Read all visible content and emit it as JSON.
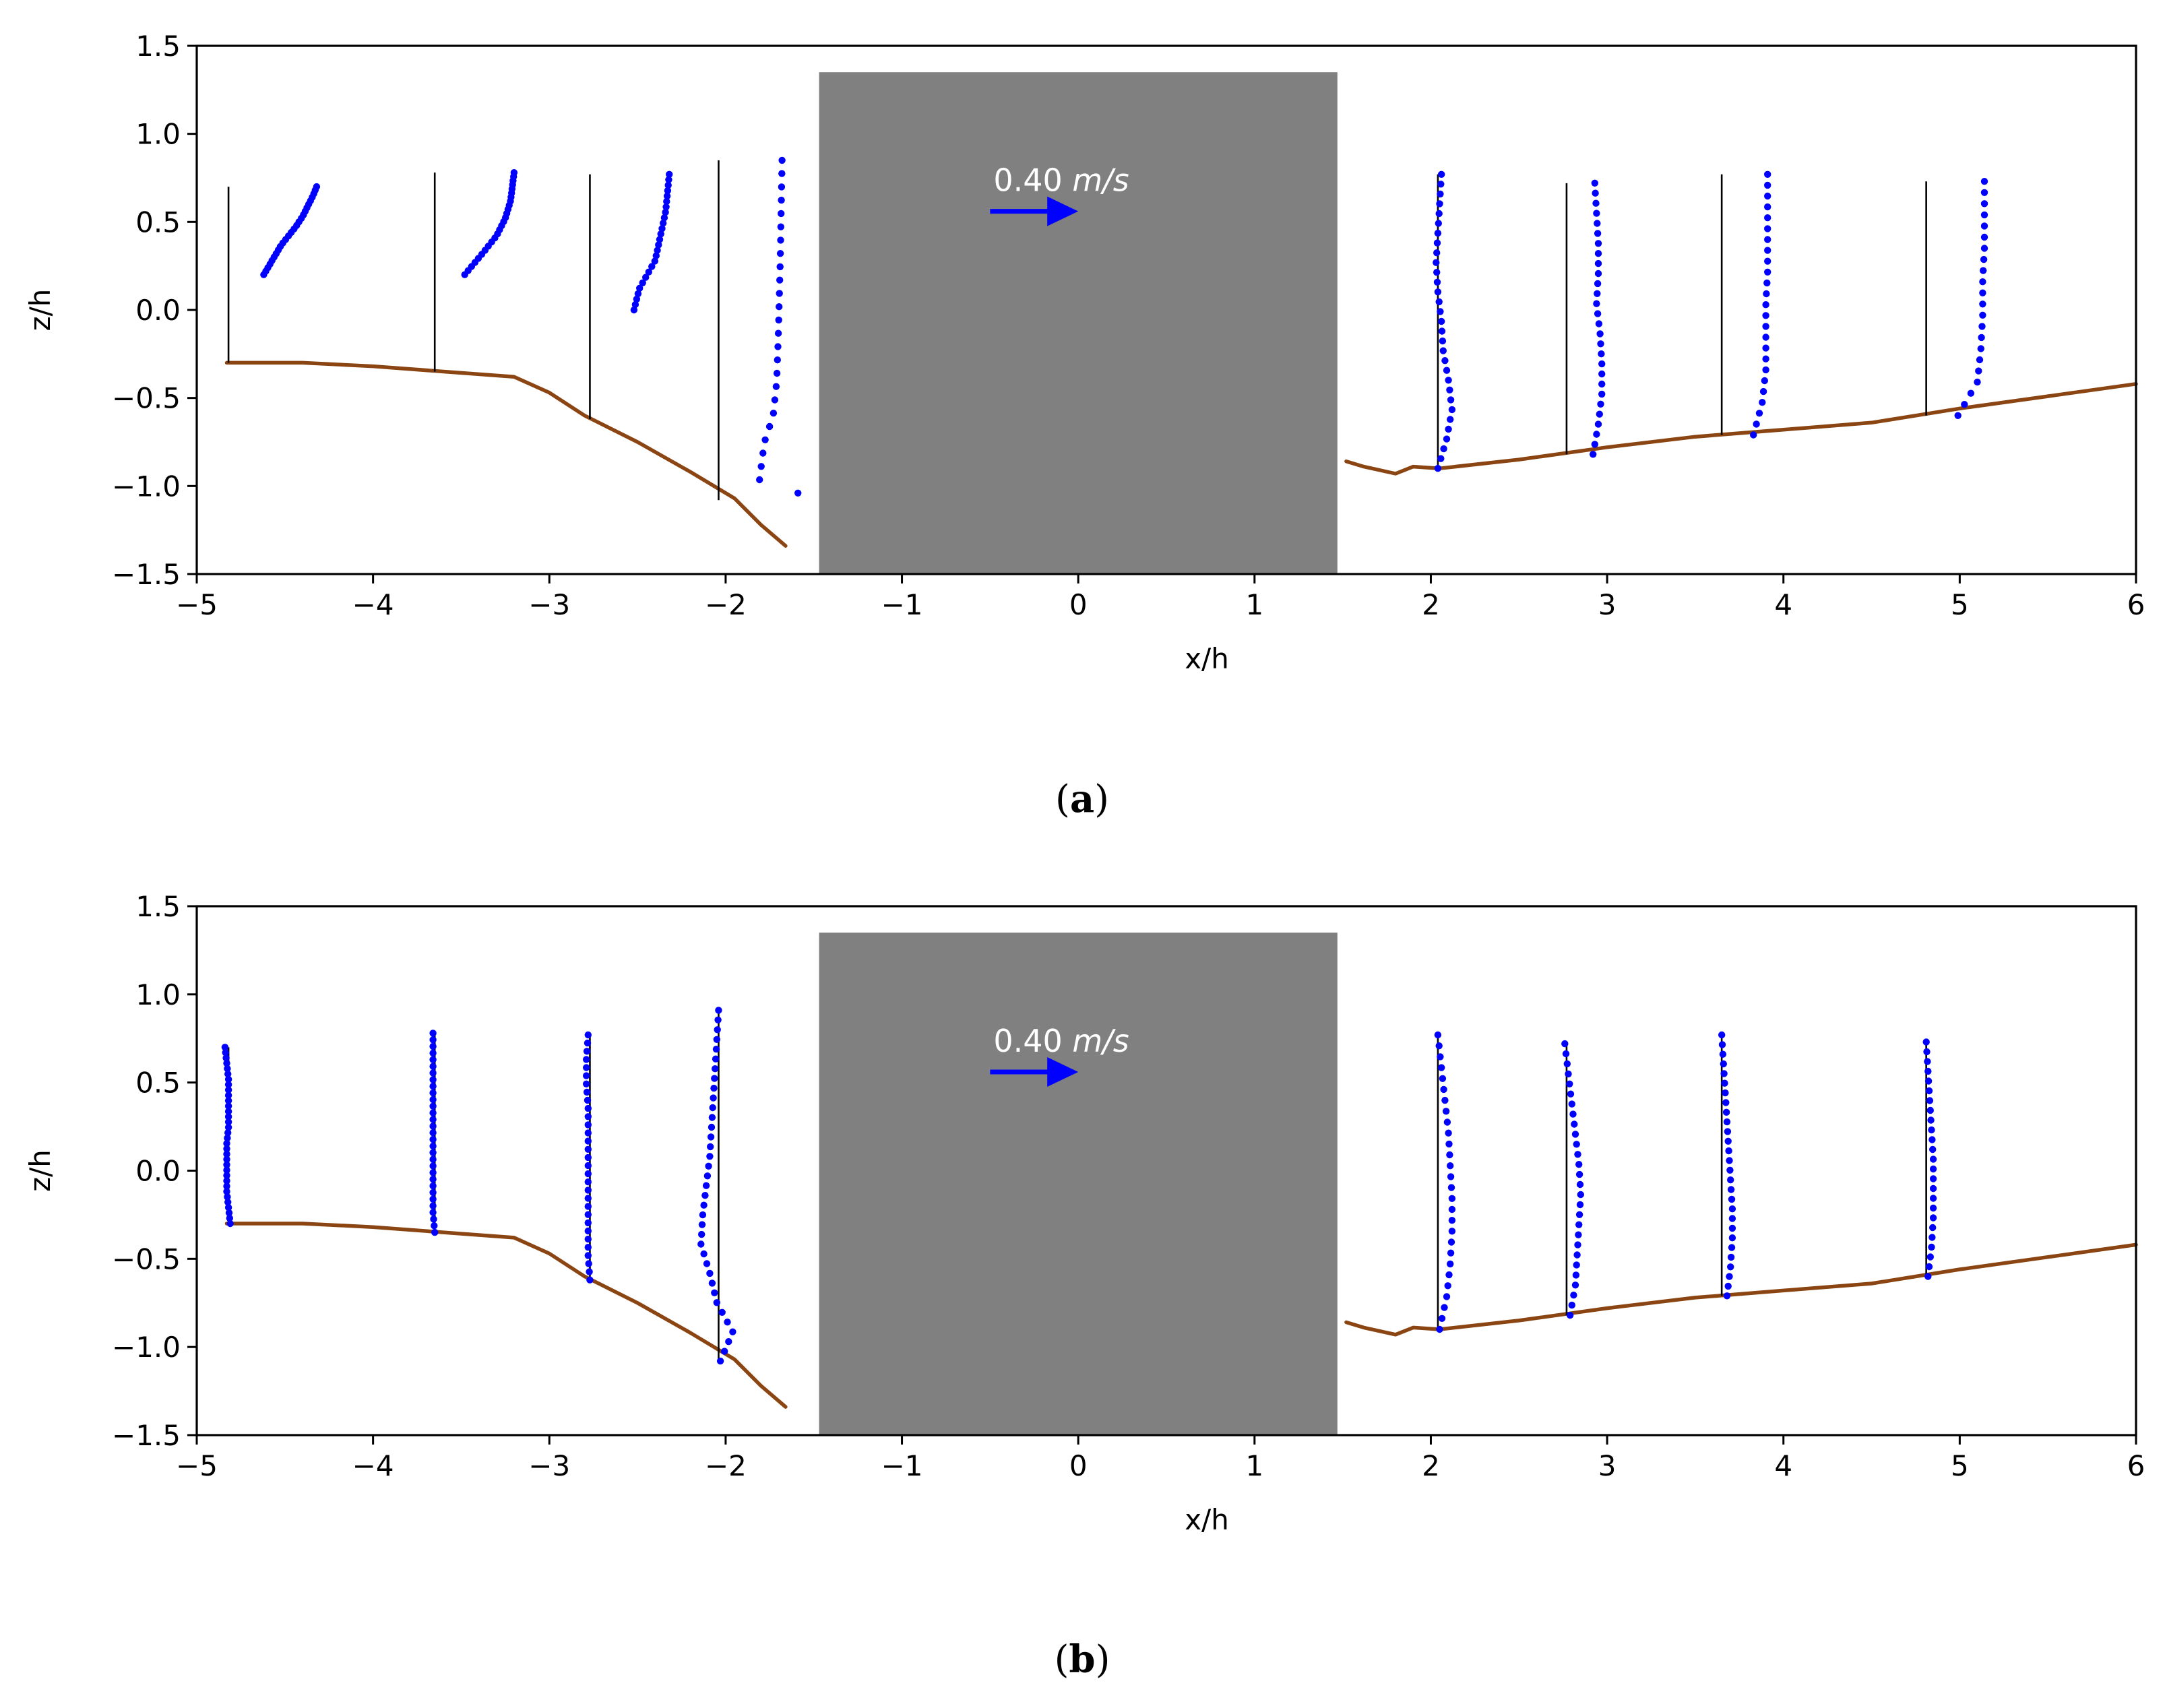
{
  "chart_data": [
    {
      "type": "scatter",
      "panel_label": "a",
      "xlabel": "x/h",
      "ylabel": "z/h",
      "xlim": [
        -5,
        6
      ],
      "ylim": [
        -1.5,
        1.5
      ],
      "xticks": [
        -5,
        -4,
        -3,
        -2,
        -1,
        0,
        1,
        2,
        3,
        4,
        5,
        6
      ],
      "yticks": [
        -1.5,
        -1.0,
        -0.5,
        0.0,
        0.5,
        1.0,
        1.5
      ],
      "obstacle": {
        "x": [
          -1.47,
          1.47
        ],
        "z": [
          -1.5,
          1.35
        ],
        "color": "#808080"
      },
      "scale_arrow": {
        "label": "0.40",
        "unit": "m/s",
        "x_start": -0.5,
        "x_end": 0.0,
        "z": 0.56,
        "color": "#0000ff"
      },
      "bed_profiles": [
        {
          "color": "#8B4513",
          "points": [
            [
              -4.83,
              -0.3
            ],
            [
              -4.4,
              -0.3
            ],
            [
              -4.0,
              -0.32
            ],
            [
              -3.6,
              -0.35
            ],
            [
              -3.2,
              -0.38
            ],
            [
              -3.0,
              -0.47
            ],
            [
              -2.8,
              -0.6
            ],
            [
              -2.5,
              -0.75
            ],
            [
              -2.2,
              -0.92
            ],
            [
              -1.95,
              -1.07
            ],
            [
              -1.8,
              -1.22
            ],
            [
              -1.66,
              -1.34
            ]
          ]
        },
        {
          "color": "#8B4513",
          "points": [
            [
              1.52,
              -0.86
            ],
            [
              1.62,
              -0.89
            ],
            [
              1.8,
              -0.93
            ],
            [
              1.9,
              -0.89
            ],
            [
              2.05,
              -0.9
            ],
            [
              2.5,
              -0.85
            ],
            [
              3.0,
              -0.78
            ],
            [
              3.5,
              -0.72
            ],
            [
              4.0,
              -0.68
            ],
            [
              4.5,
              -0.64
            ],
            [
              5.0,
              -0.56
            ],
            [
              5.5,
              -0.49
            ],
            [
              6.0,
              -0.42
            ]
          ]
        }
      ],
      "profiles": [
        {
          "x0": -4.82,
          "z_bed": -0.3,
          "z_top": 0.7,
          "u": [
            [
              -0.3,
              0.2
            ],
            [
              -0.2,
              0.37
            ],
            [
              -0.12,
              0.47
            ],
            [
              -0.08,
              0.53
            ],
            [
              -0.05,
              0.59
            ],
            [
              -0.02,
              0.65
            ],
            [
              0.0,
              0.7
            ]
          ],
          "du_scale": 0.5
        },
        {
          "x0": -3.65,
          "z_bed": -0.35,
          "z_top": 0.78,
          "u": [
            [
              -0.28,
              0.2
            ],
            [
              -0.18,
              0.32
            ],
            [
              -0.1,
              0.42
            ],
            [
              -0.05,
              0.52
            ],
            [
              -0.02,
              0.62
            ],
            [
              0.0,
              0.78
            ]
          ],
          "du_scale": 0.45
        },
        {
          "x0": -2.77,
          "z_bed": -0.62,
          "z_top": 0.77,
          "u": [
            [
              -0.2,
              0.0
            ],
            [
              -0.17,
              0.12
            ],
            [
              -0.08,
              0.28
            ],
            [
              -0.05,
              0.42
            ],
            [
              -0.02,
              0.56
            ],
            [
              0.0,
              0.77
            ]
          ],
          "du_scale": 0.45
        },
        {
          "x0": -2.04,
          "z_bed": -1.08,
          "z_top": 0.85,
          "u": [
            [
              0.09,
              -1.04
            ],
            [
              -0.13,
              -0.98
            ],
            [
              -0.1,
              -0.75
            ],
            [
              -0.05,
              -0.6
            ],
            [
              -0.03,
              -0.4
            ],
            [
              -0.02,
              -0.1
            ],
            [
              -0.01,
              0.3
            ],
            [
              0.0,
              0.85
            ]
          ],
          "du_scale": 0.36
        }
      ],
      "profiles_right": [
        {
          "x0": 2.04,
          "z_bed": -0.9,
          "z_top": 0.77,
          "x_vals": [
            2.04,
            2.09,
            2.12,
            2.1,
            2.07,
            2.06,
            2.04,
            2.03,
            2.04,
            2.05,
            2.06
          ]
        },
        {
          "x0": 2.77,
          "z_bed": -0.82,
          "z_top": 0.72,
          "x_vals": [
            2.92,
            2.95,
            2.97,
            2.97,
            2.96,
            2.94,
            2.95,
            2.95,
            2.94,
            2.93
          ]
        },
        {
          "x0": 3.65,
          "z_bed": -0.71,
          "z_top": 0.77,
          "x_vals": [
            3.83,
            3.88,
            3.9,
            3.9,
            3.9,
            3.91,
            3.91,
            3.91,
            3.91
          ]
        },
        {
          "x0": 4.81,
          "z_bed": -0.6,
          "z_top": 0.73,
          "x_vals": [
            4.99,
            5.1,
            5.12,
            5.13,
            5.13,
            5.14,
            5.14,
            5.14
          ]
        }
      ]
    },
    {
      "type": "scatter",
      "panel_label": "b",
      "xlabel": "x/h",
      "ylabel": "z/h",
      "xlim": [
        -5,
        6
      ],
      "ylim": [
        -1.5,
        1.5
      ],
      "xticks": [
        -5,
        -4,
        -3,
        -2,
        -1,
        0,
        1,
        2,
        3,
        4,
        5,
        6
      ],
      "yticks": [
        -1.5,
        -1.0,
        -0.5,
        0.0,
        0.5,
        1.0,
        1.5
      ],
      "obstacle": {
        "x": [
          -1.47,
          1.47
        ],
        "z": [
          -1.5,
          1.35
        ],
        "color": "#808080"
      },
      "scale_arrow": {
        "label": "0.40",
        "unit": "m/s",
        "x_start": -0.5,
        "x_end": 0.0,
        "z": 0.56,
        "color": "#0000ff"
      },
      "bed_profiles": [
        {
          "color": "#8B4513",
          "points": [
            [
              -4.83,
              -0.3
            ],
            [
              -4.4,
              -0.3
            ],
            [
              -4.0,
              -0.32
            ],
            [
              -3.6,
              -0.35
            ],
            [
              -3.2,
              -0.38
            ],
            [
              -3.0,
              -0.47
            ],
            [
              -2.8,
              -0.6
            ],
            [
              -2.5,
              -0.75
            ],
            [
              -2.2,
              -0.92
            ],
            [
              -1.95,
              -1.07
            ],
            [
              -1.8,
              -1.22
            ],
            [
              -1.66,
              -1.34
            ]
          ]
        },
        {
          "color": "#8B4513",
          "points": [
            [
              1.52,
              -0.86
            ],
            [
              1.62,
              -0.89
            ],
            [
              1.8,
              -0.93
            ],
            [
              1.9,
              -0.89
            ],
            [
              2.05,
              -0.9
            ],
            [
              2.5,
              -0.85
            ],
            [
              3.0,
              -0.78
            ],
            [
              3.5,
              -0.72
            ],
            [
              4.0,
              -0.68
            ],
            [
              4.5,
              -0.64
            ],
            [
              5.0,
              -0.56
            ],
            [
              5.5,
              -0.49
            ],
            [
              6.0,
              -0.42
            ]
          ]
        }
      ],
      "profiles_all": [
        {
          "x0": -4.82,
          "z_bed": -0.3,
          "z_top": 0.7,
          "x_vals": [
            -4.81,
            -4.82,
            -4.83,
            -4.83,
            -4.83,
            -4.83,
            -4.82,
            -4.82,
            -4.82,
            -4.82,
            -4.83,
            -4.84
          ]
        },
        {
          "x0": -3.65,
          "z_bed": -0.35,
          "z_top": 0.78,
          "x_vals": [
            -3.65,
            -3.66,
            -3.66,
            -3.66,
            -3.66,
            -3.66,
            -3.66,
            -3.66,
            -3.66,
            -3.66,
            -3.66
          ]
        },
        {
          "x0": -2.77,
          "z_bed": -0.62,
          "z_top": 0.77,
          "x_vals": [
            -2.77,
            -2.78,
            -2.78,
            -2.78,
            -2.78,
            -2.78,
            -2.78,
            -2.78,
            -2.79,
            -2.79,
            -2.78
          ]
        },
        {
          "x0": -2.04,
          "z_bed": -1.08,
          "z_top": 0.91,
          "x_vals": [
            -2.03,
            -1.96,
            -2.05,
            -2.09,
            -2.14,
            -2.13,
            -2.11,
            -2.09,
            -2.08,
            -2.07,
            -2.06,
            -2.05,
            -2.04
          ]
        },
        {
          "x0": 2.04,
          "z_bed": -0.9,
          "z_top": 0.77,
          "x_vals": [
            2.05,
            2.09,
            2.11,
            2.12,
            2.12,
            2.11,
            2.1,
            2.08,
            2.06,
            2.04
          ]
        },
        {
          "x0": 2.77,
          "z_bed": -0.82,
          "z_top": 0.72,
          "x_vals": [
            2.79,
            2.82,
            2.83,
            2.84,
            2.85,
            2.84,
            2.82,
            2.8,
            2.78,
            2.76
          ]
        },
        {
          "x0": 3.65,
          "z_bed": -0.71,
          "z_top": 0.77,
          "x_vals": [
            3.68,
            3.7,
            3.71,
            3.71,
            3.7,
            3.69,
            3.68,
            3.67,
            3.66,
            3.65
          ]
        },
        {
          "x0": 4.81,
          "z_bed": -0.6,
          "z_top": 0.73,
          "x_vals": [
            4.82,
            4.84,
            4.85,
            4.85,
            4.85,
            4.84,
            4.83,
            4.82,
            4.81
          ]
        }
      ]
    }
  ]
}
